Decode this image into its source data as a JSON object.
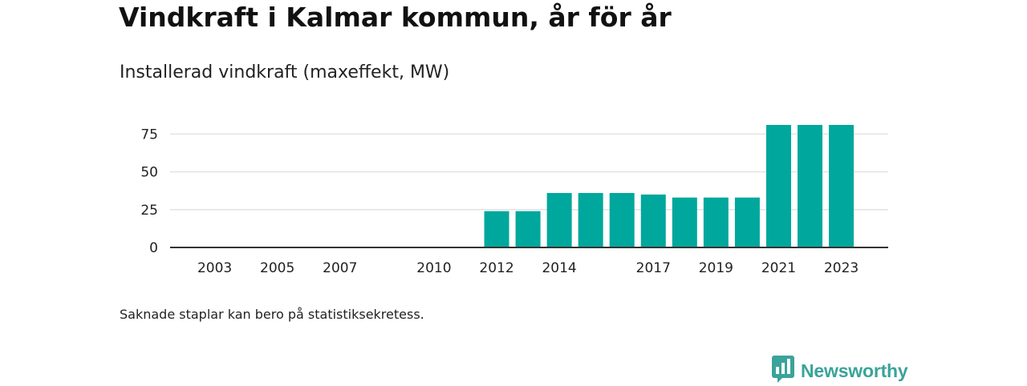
{
  "title": "Vindkraft i Kalmar kommun, år för år",
  "subtitle": "Installerad vindkraft (maxeffekt, MW)",
  "footnote": "Saknade staplar kan bero på statistiksekretess.",
  "brand": {
    "name": "Newsworthy",
    "icon": "newsworthy-chart-bubble-icon"
  },
  "colors": {
    "bar": "#00a79d",
    "grid": "#dddddd",
    "axis": "#333333",
    "brand": "#3aa39a"
  },
  "chart_data": {
    "type": "bar",
    "categories": [
      "2003",
      "2004",
      "2005",
      "2006",
      "2007",
      "2008",
      "2009",
      "2010",
      "2011",
      "2012",
      "2013",
      "2014",
      "2015",
      "2016",
      "2017",
      "2018",
      "2019",
      "2020",
      "2021",
      "2022",
      "2023"
    ],
    "values": [
      0,
      0,
      0,
      0,
      0,
      0,
      0,
      0,
      0,
      24,
      24,
      36,
      36,
      36,
      35,
      33,
      33,
      33,
      81,
      81,
      81
    ],
    "x_tick_labels": [
      "2003",
      "2005",
      "2007",
      "2010",
      "2012",
      "2014",
      "2017",
      "2019",
      "2021",
      "2023"
    ],
    "y_ticks": [
      0,
      25,
      50,
      75
    ],
    "ylim": [
      0,
      81
    ],
    "xlabel": "",
    "ylabel": "",
    "grid": true,
    "legend": "none"
  }
}
